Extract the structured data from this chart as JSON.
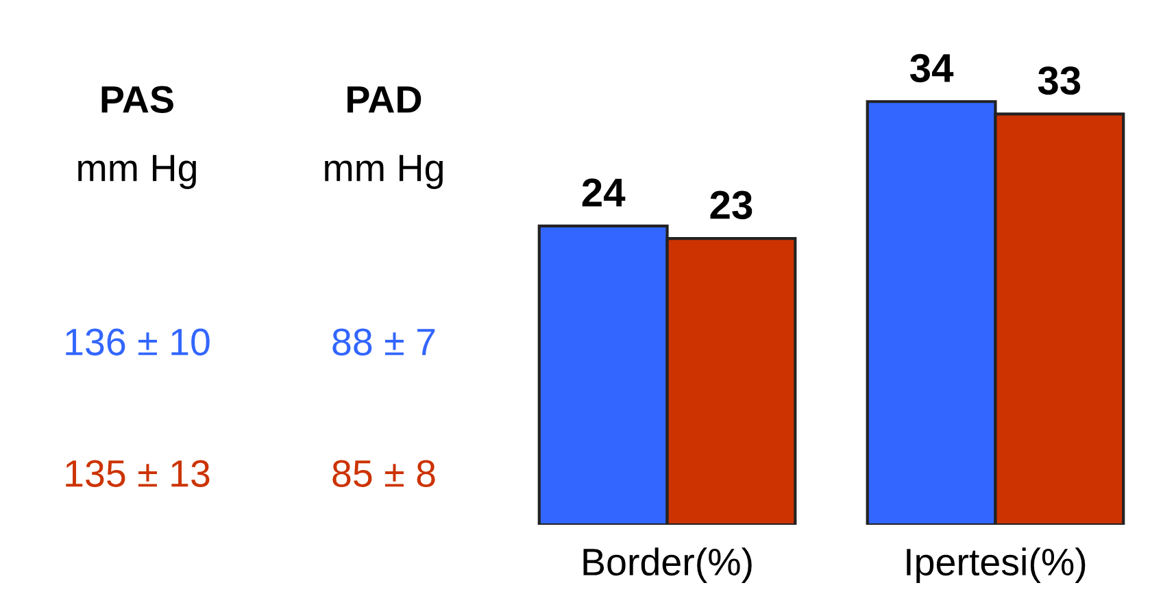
{
  "chart_data": {
    "type": "bar",
    "categories": [
      "Border(%)",
      "Ipertesi(%)"
    ],
    "series": [
      {
        "color": "#3366ff",
        "values": [
          24,
          34
        ]
      },
      {
        "color": "#cc3300",
        "values": [
          23,
          33
        ]
      }
    ],
    "data_labels": true,
    "grid": false,
    "legend": false,
    "annotations": [
      "PAS",
      "PAD",
      "mm Hg",
      "mm Hg",
      "136 ± 10",
      "88 ± 7",
      "135 ± 13",
      "85 ± 8"
    ]
  }
}
